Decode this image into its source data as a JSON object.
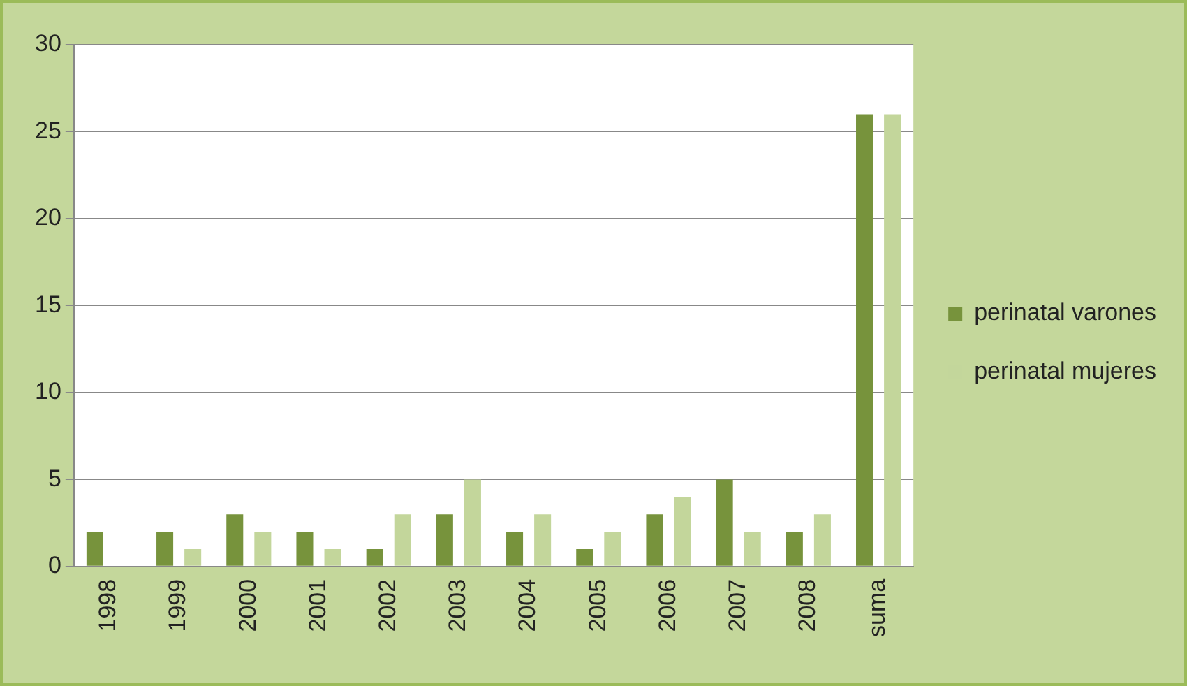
{
  "chart_data": {
    "type": "bar",
    "categories": [
      "1998",
      "1999",
      "2000",
      "2001",
      "2002",
      "2003",
      "2004",
      "2005",
      "2006",
      "2007",
      "2008",
      "suma"
    ],
    "series": [
      {
        "name": "perinatal varones",
        "color": "#77933c",
        "values": [
          2,
          2,
          3,
          2,
          1,
          3,
          2,
          1,
          3,
          5,
          2,
          26
        ]
      },
      {
        "name": "perinatal mujeres",
        "color": "#c3d69b",
        "values": [
          0,
          1,
          2,
          1,
          3,
          5,
          3,
          2,
          4,
          2,
          3,
          26
        ]
      }
    ],
    "ylim": [
      0,
      30
    ],
    "yticks": [
      0,
      5,
      10,
      15,
      20,
      25,
      30
    ],
    "grid": "y",
    "legend": "right"
  }
}
